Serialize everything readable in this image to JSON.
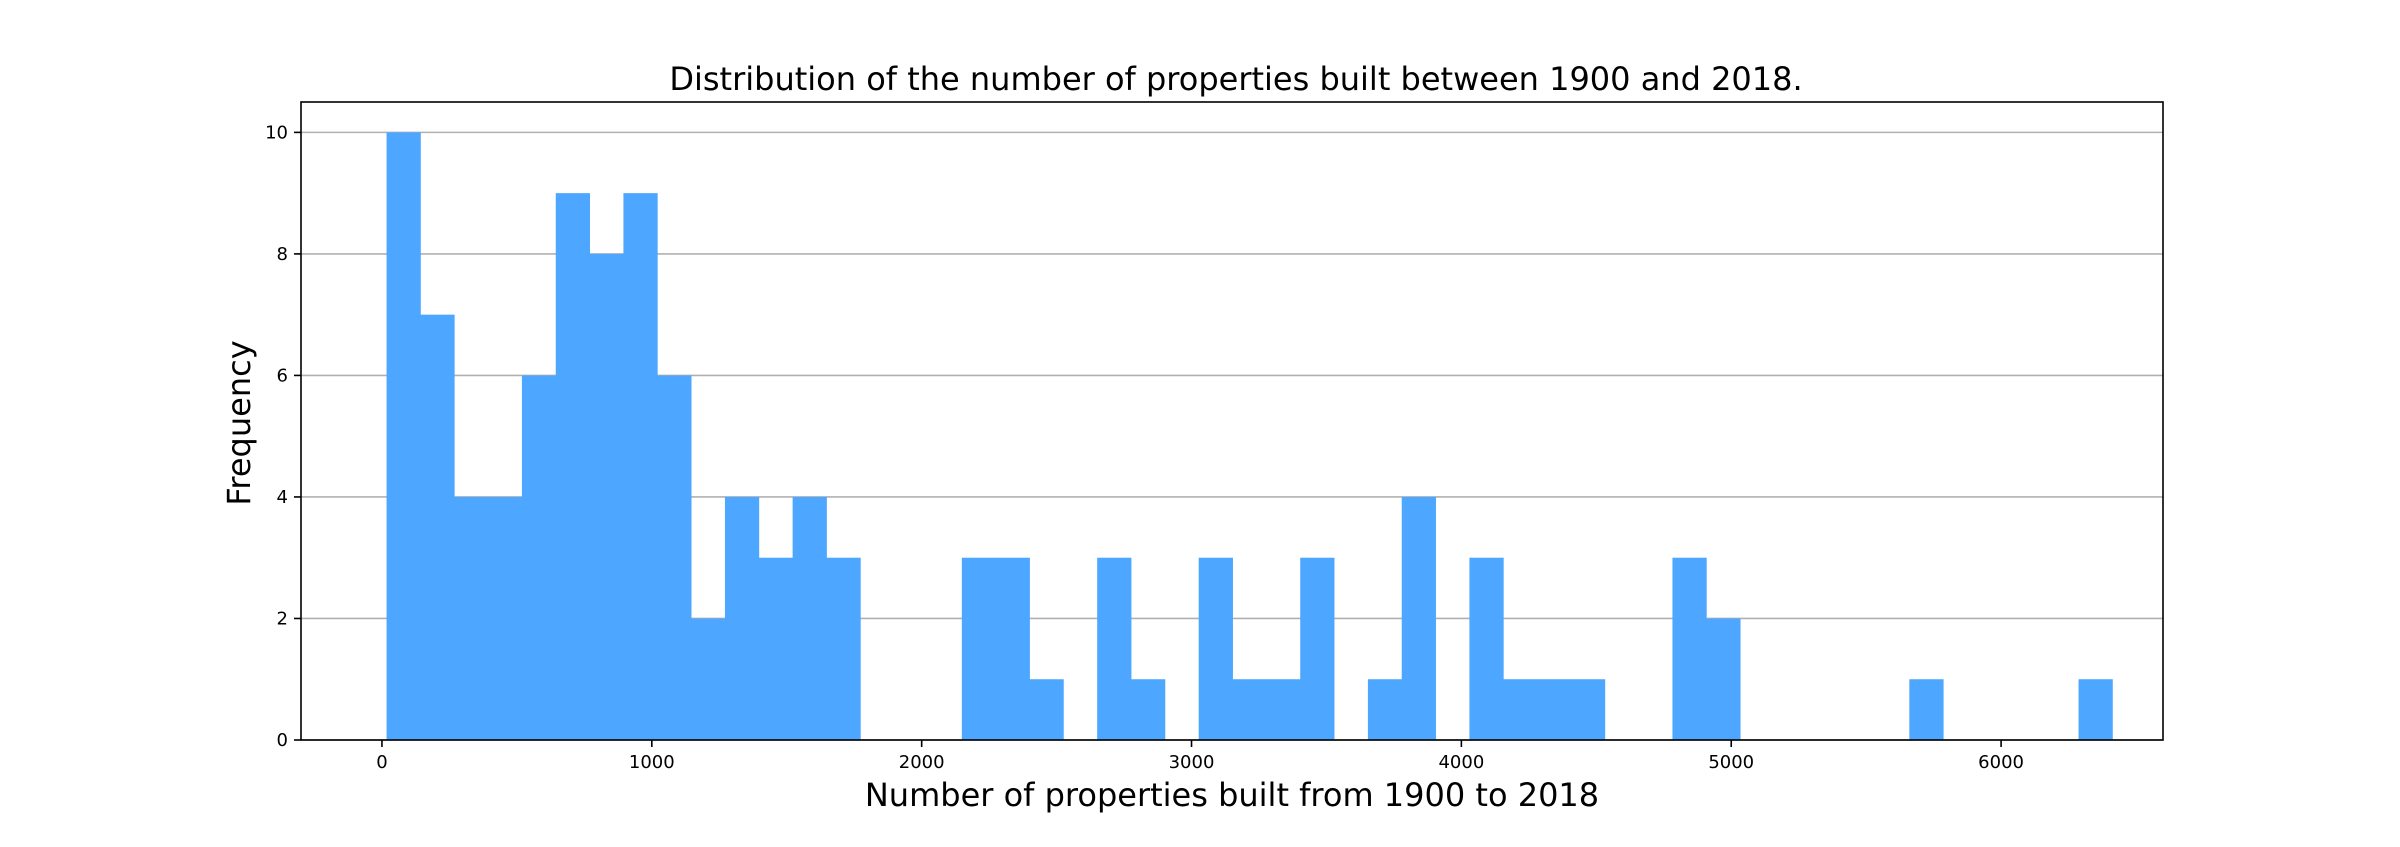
{
  "chart_data": {
    "type": "bar",
    "title": "Distribution of the number of properties built between 1900 and 2018.",
    "xlabel": "Number of properties built from 1900 to 2018",
    "ylabel": "Frequency",
    "xlim": [
      -300,
      6600
    ],
    "ylim": [
      0,
      10.5
    ],
    "x_ticks": [
      0,
      1000,
      2000,
      3000,
      4000,
      5000,
      6000
    ],
    "y_ticks": [
      0,
      2,
      4,
      6,
      8,
      10
    ],
    "grid": "horizontal",
    "bar_color": "#4da6ff",
    "bin_start": 17,
    "bin_width": 125.4,
    "values": [
      10,
      7,
      4,
      4,
      6,
      9,
      8,
      9,
      6,
      2,
      4,
      3,
      4,
      3,
      0,
      0,
      0,
      3,
      3,
      1,
      0,
      3,
      1,
      0,
      3,
      1,
      1,
      3,
      0,
      1,
      4,
      0,
      3,
      1,
      1,
      1,
      0,
      0,
      3,
      2,
      0,
      0,
      0,
      0,
      0,
      1,
      0,
      0,
      0,
      0,
      1
    ]
  }
}
